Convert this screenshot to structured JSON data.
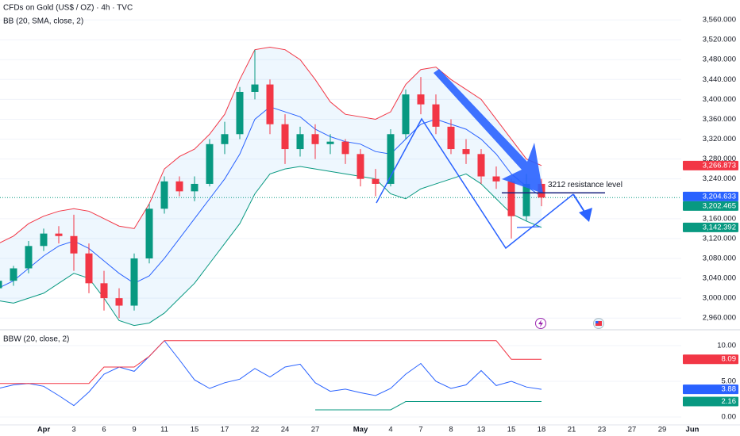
{
  "chart_data": [
    {
      "type": "candlestick",
      "title": "CFDs on Gold (US$ / OZ) · 4h · TVC",
      "subtitle": "BB (20, SMA, close, 2)",
      "categories": [
        null,
        null,
        null,
        "Apr",
        null,
        "3",
        null,
        "6",
        null,
        "9",
        null,
        "11",
        null,
        "15",
        null,
        "17",
        null,
        "22",
        null,
        "24",
        null,
        "27",
        null,
        null,
        "May",
        null,
        "4",
        null,
        "7",
        null,
        "8",
        null,
        "13",
        null,
        "15",
        null,
        "18",
        null,
        "21",
        null,
        "23",
        null,
        "27",
        null,
        "29",
        null,
        "Jun"
      ],
      "open": [
        3020,
        3035,
        3060,
        3105,
        3130,
        3125,
        3090,
        3030,
        3000,
        2985,
        3080,
        3180,
        3235,
        3215,
        3230,
        3310,
        3330,
        3415,
        3430,
        3350,
        3300,
        3330,
        3310,
        3315,
        3290,
        3240,
        3230,
        3330,
        3410,
        3390,
        3345,
        3300,
        3290,
        3245,
        3235,
        3165,
        3230,
        null,
        null,
        null,
        null,
        null,
        null,
        null,
        null,
        null,
        null
      ],
      "high": [
        3045,
        3065,
        3115,
        3140,
        3145,
        3168,
        3110,
        3055,
        3020,
        3090,
        3190,
        3245,
        3245,
        3245,
        3320,
        3355,
        3425,
        3500,
        3440,
        3370,
        3345,
        3350,
        3330,
        3320,
        3300,
        3260,
        3340,
        3420,
        3445,
        3410,
        3360,
        3320,
        3300,
        3265,
        3240,
        3250,
        3240,
        null,
        null,
        null,
        null,
        null,
        null,
        null,
        null,
        null,
        null
      ],
      "low": [
        3010,
        3025,
        3050,
        3095,
        3110,
        3055,
        3010,
        2975,
        2960,
        2975,
        3070,
        3170,
        3205,
        3195,
        3225,
        3290,
        3320,
        3400,
        3330,
        3270,
        3285,
        3280,
        3290,
        3270,
        3225,
        3205,
        3225,
        3320,
        3370,
        3330,
        3290,
        3270,
        3230,
        3220,
        3120,
        3155,
        3185,
        null,
        null,
        null,
        null,
        null,
        null,
        null,
        null,
        null,
        null
      ],
      "close": [
        3035,
        3060,
        3105,
        3130,
        3125,
        3090,
        3030,
        3000,
        2985,
        3080,
        3180,
        3235,
        3215,
        3230,
        3310,
        3330,
        3415,
        3430,
        3350,
        3300,
        3330,
        3310,
        3315,
        3290,
        3240,
        3230,
        3330,
        3410,
        3390,
        3345,
        3300,
        3290,
        3245,
        3235,
        3165,
        3230,
        3202.465,
        null,
        null,
        null,
        null,
        null,
        null,
        null,
        null,
        null,
        null
      ],
      "close_value_labels": [
        null,
        null,
        null,
        null,
        null,
        null,
        null,
        null,
        null,
        null,
        null,
        null,
        null,
        null,
        null,
        null,
        null,
        null,
        null,
        null,
        null,
        null,
        null,
        null,
        null,
        null,
        null,
        null,
        null,
        null,
        null,
        null,
        null,
        null,
        null,
        null,
        "3,202.465",
        null,
        null,
        null,
        null,
        null,
        null,
        null,
        null,
        null,
        null
      ],
      "up_color": "#089981",
      "down_color": "#f23645",
      "price_label_color": "#089981",
      "bands": {
        "upper": {
          "color": "#f23645",
          "values": [
            3110,
            3125,
            3150,
            3165,
            3175,
            3180,
            3175,
            3160,
            3145,
            3140,
            3190,
            3260,
            3285,
            3300,
            3330,
            3370,
            3440,
            3500,
            3505,
            3500,
            3480,
            3440,
            3395,
            3370,
            3365,
            3360,
            3375,
            3430,
            3460,
            3465,
            3440,
            3420,
            3400,
            3360,
            3320,
            3280,
            3266.873,
            null,
            null,
            null,
            null,
            null,
            null,
            null,
            null,
            null,
            null
          ],
          "value_labels": [
            null,
            null,
            null,
            null,
            null,
            null,
            null,
            null,
            null,
            null,
            null,
            null,
            null,
            null,
            null,
            null,
            null,
            null,
            null,
            null,
            null,
            null,
            null,
            null,
            null,
            null,
            null,
            null,
            null,
            null,
            null,
            null,
            null,
            null,
            null,
            null,
            "3,266.873",
            null,
            null,
            null,
            null,
            null,
            null,
            null,
            null,
            null,
            null
          ]
        },
        "basis": {
          "color": "#2962ff",
          "values": [
            3020,
            3035,
            3060,
            3085,
            3105,
            3115,
            3100,
            3075,
            3050,
            3030,
            3045,
            3080,
            3120,
            3160,
            3200,
            3240,
            3290,
            3360,
            3385,
            3375,
            3365,
            3340,
            3325,
            3315,
            3310,
            3295,
            3290,
            3320,
            3350,
            3360,
            3350,
            3340,
            3320,
            3290,
            3250,
            3225,
            3204.633,
            null,
            null,
            null,
            null,
            null,
            null,
            null,
            null,
            null,
            null
          ],
          "value_labels": [
            null,
            null,
            null,
            null,
            null,
            null,
            null,
            null,
            null,
            null,
            null,
            null,
            null,
            null,
            null,
            null,
            null,
            null,
            null,
            null,
            null,
            null,
            null,
            null,
            null,
            null,
            null,
            null,
            null,
            null,
            null,
            null,
            null,
            null,
            null,
            null,
            "3,204.633",
            null,
            null,
            null,
            null,
            null,
            null,
            null,
            null,
            null,
            null
          ]
        },
        "lower": {
          "color": "#089981",
          "values": [
            2995,
            2990,
            3000,
            3010,
            3030,
            3050,
            3040,
            3000,
            2955,
            2945,
            2950,
            2970,
            3000,
            3030,
            3070,
            3110,
            3150,
            3210,
            3250,
            3260,
            3265,
            3260,
            3255,
            3250,
            3245,
            3240,
            3210,
            3200,
            3220,
            3230,
            3240,
            3250,
            3230,
            3200,
            3170,
            3155,
            3142.392,
            null,
            null,
            null,
            null,
            null,
            null,
            null,
            null,
            null,
            null
          ],
          "value_labels": [
            null,
            null,
            null,
            null,
            null,
            null,
            null,
            null,
            null,
            null,
            null,
            null,
            null,
            null,
            null,
            null,
            null,
            null,
            null,
            null,
            null,
            null,
            null,
            null,
            null,
            null,
            null,
            null,
            null,
            null,
            null,
            null,
            null,
            null,
            null,
            null,
            "3,142.392",
            null,
            null,
            null,
            null,
            null,
            null,
            null,
            null,
            null,
            null
          ]
        },
        "fill_color": "#2196f3"
      },
      "ylim": [
        2938,
        3600
      ],
      "yticks": [
        {
          "value": 2960,
          "label": "2,960.000"
        },
        {
          "value": 3000,
          "label": "3,000.000"
        },
        {
          "value": 3040,
          "label": "3,040.000"
        },
        {
          "value": 3080,
          "label": "3,080.000"
        },
        {
          "value": 3120,
          "label": "3,120.000"
        },
        {
          "value": 3160,
          "label": "3,160.000"
        },
        {
          "value": 3240,
          "label": "3,240.000"
        },
        {
          "value": 3280,
          "label": "3,280.000"
        },
        {
          "value": 3320,
          "label": "3,320.000"
        },
        {
          "value": 3360,
          "label": "3,360.000"
        },
        {
          "value": 3400,
          "label": "3,400.000"
        },
        {
          "value": 3440,
          "label": "3,440.000"
        },
        {
          "value": 3480,
          "label": "3,480.000"
        },
        {
          "value": 3520,
          "label": "3,520.000"
        },
        {
          "value": 3560,
          "label": "3,560.000"
        }
      ],
      "grid": true,
      "annotation": {
        "value": 3212,
        "label": "3212 resistance level",
        "color": "#e91e63",
        "line_color": "#1a237e"
      }
    },
    {
      "type": "line",
      "title": "BBW (20, close, 2)",
      "series": [
        {
          "color": "#2962ff",
          "values": [
            4.0,
            4.5,
            4.7,
            4.3,
            3.0,
            1.6,
            3.5,
            6.0,
            7.0,
            6.4,
            8.5,
            10.7,
            8.0,
            5.2,
            4.0,
            4.8,
            5.3,
            6.8,
            5.6,
            7.0,
            7.4,
            4.8,
            3.6,
            3.9,
            3.4,
            3.0,
            4.0,
            6.0,
            7.5,
            5.0,
            4.0,
            4.5,
            6.5,
            4.4,
            5.0,
            4.2,
            3.88,
            null,
            null,
            null,
            null,
            null,
            null,
            null,
            null,
            null,
            null
          ]
        },
        {
          "color": "#f23645",
          "values": [
            4.7,
            4.7,
            4.7,
            4.7,
            4.7,
            4.7,
            4.7,
            7.0,
            7.0,
            7.0,
            8.5,
            10.7,
            10.7,
            10.7,
            10.7,
            10.7,
            10.7,
            10.7,
            10.7,
            10.7,
            10.7,
            10.7,
            10.7,
            10.7,
            10.7,
            10.7,
            10.7,
            10.7,
            10.7,
            10.7,
            10.7,
            10.7,
            10.7,
            10.7,
            8.09,
            8.09,
            8.09,
            null,
            null,
            null,
            null,
            null,
            null,
            null,
            null,
            null,
            null
          ]
        },
        {
          "color": "#089981",
          "values": [
            null,
            null,
            null,
            null,
            null,
            null,
            null,
            null,
            null,
            null,
            null,
            null,
            null,
            null,
            null,
            null,
            null,
            null,
            null,
            null,
            null,
            1.0,
            1.0,
            1.0,
            1.0,
            1.0,
            1.0,
            2.16,
            2.16,
            2.16,
            2.16,
            2.16,
            2.16,
            2.16,
            2.16,
            2.16,
            2.16,
            null,
            null,
            null,
            null,
            null,
            null,
            null,
            null,
            null,
            null
          ]
        }
      ],
      "ylim": [
        -1,
        12
      ],
      "yticks": [
        {
          "value": 0,
          "label": "0.00"
        },
        {
          "value": 5,
          "label": "5.00"
        },
        {
          "value": 10,
          "label": "10.00"
        }
      ]
    }
  ]
}
